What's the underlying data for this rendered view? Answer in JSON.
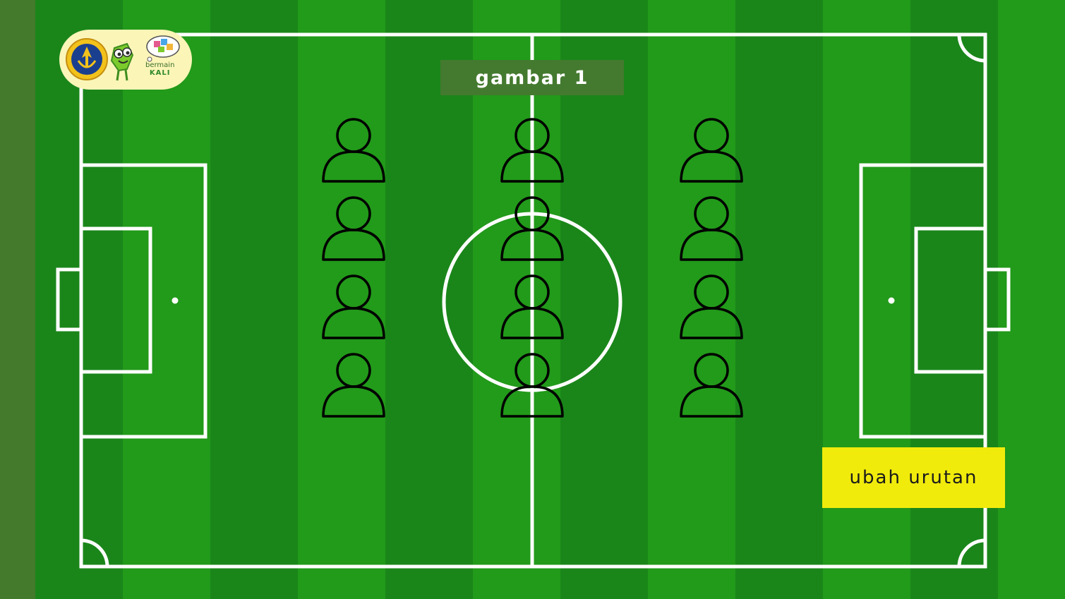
{
  "title": "gambar 1",
  "action_button": {
    "label": "ubah urutan"
  },
  "logo": {
    "line1": "bermain",
    "line2": "KALI"
  },
  "colors": {
    "outer_background": "#447a2c",
    "pitch_stripe_dark": "#1a861a",
    "pitch_stripe_light": "#229a1a",
    "lines": "#ffffff",
    "player_outline": "#000000",
    "title_banner": "#447a2f",
    "button_background": "#f1eb0c",
    "logo_badge": "#fbf5b8"
  },
  "formation": {
    "columns": 3,
    "rows": 4,
    "player_icon": "person-outline-icon"
  }
}
